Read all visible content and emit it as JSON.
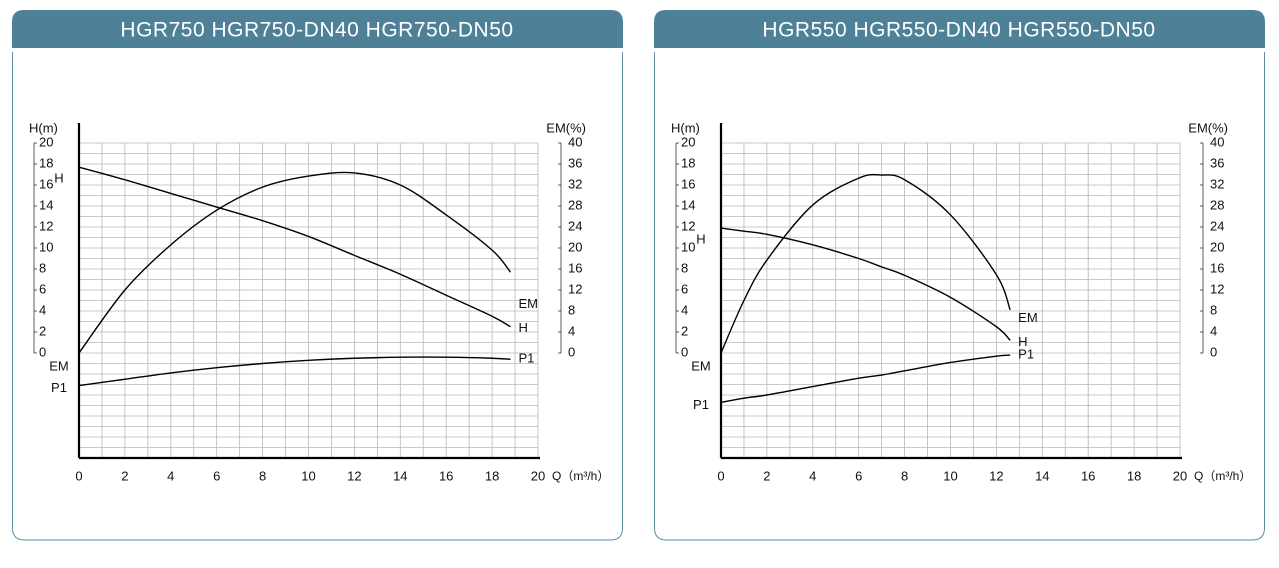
{
  "chart_data": [
    {
      "type": "line",
      "title": "HGR750 HGR750-DN40 HGR750-DN50",
      "x_label": "Q（m³/h）",
      "y_label": "H(m)",
      "y2_label": "EM(%)",
      "x": [
        0,
        2,
        4,
        6,
        8,
        10,
        12,
        14,
        16,
        18,
        18.8
      ],
      "series": [
        {
          "name": "H",
          "color": "#000000",
          "values": [
            17.7,
            16.5,
            15.2,
            13.9,
            12.6,
            11.1,
            9.3,
            7.5,
            5.5,
            3.5,
            2.5
          ]
        },
        {
          "name": "EM",
          "color": "#000000",
          "axis": "y2",
          "values": [
            0,
            12,
            20.6,
            27.2,
            31.6,
            33.7,
            34.3,
            32,
            26.3,
            19.6,
            15.4
          ]
        },
        {
          "name": "P1",
          "color": "#000000",
          "values": [
            -3.1,
            -2.5,
            -1.9,
            -1.4,
            -1.0,
            -0.7,
            -0.5,
            -0.4,
            -0.4,
            -0.5,
            -0.6
          ]
        }
      ],
      "xlim": [
        0,
        20
      ],
      "xticks": [
        0,
        2,
        4,
        6,
        8,
        10,
        12,
        14,
        16,
        18,
        20
      ],
      "xminor": [
        1,
        3,
        5,
        7,
        9,
        11,
        13,
        15,
        17,
        19
      ],
      "ylim": [
        -10,
        20
      ],
      "yticks": [
        0,
        2,
        4,
        6,
        8,
        10,
        12,
        14,
        16,
        18,
        20
      ],
      "yminor": [
        -9,
        -8,
        -7,
        -6,
        -5,
        -4,
        -3,
        -2,
        -1,
        1,
        3,
        5,
        7,
        9,
        11,
        13,
        15,
        17,
        19
      ],
      "y2lim": [
        -20,
        40
      ],
      "y2ticks": [
        0,
        4,
        8,
        12,
        16,
        20,
        24,
        28,
        32,
        36,
        40
      ],
      "grid": true
    },
    {
      "type": "line",
      "title": "HGR550 HGR550-DN40 HGR550-DN50",
      "x_label": "Q（m³/h）",
      "y_label": "H(m)",
      "y2_label": "EM(%)",
      "x": [
        0,
        1,
        2,
        4,
        6,
        7,
        8,
        10,
        12,
        12.6
      ],
      "series": [
        {
          "name": "H",
          "color": "#000000",
          "values": [
            11.9,
            11.6,
            11.3,
            10.3,
            9.0,
            8.2,
            7.4,
            5.3,
            2.5,
            1.2
          ]
        },
        {
          "name": "EM",
          "color": "#000000",
          "axis": "y2",
          "values": [
            0,
            10,
            17.7,
            28.2,
            33.3,
            33.9,
            33,
            26.3,
            14.9,
            8.2
          ]
        },
        {
          "name": "P1",
          "color": "#000000",
          "values": [
            -4.7,
            -4.3,
            -4.0,
            -3.2,
            -2.4,
            -2.1,
            -1.7,
            -0.9,
            -0.3,
            -0.2
          ]
        }
      ],
      "xlim": [
        0,
        20
      ],
      "xticks": [
        0,
        2,
        4,
        6,
        8,
        10,
        12,
        14,
        16,
        18,
        20
      ],
      "xminor": [
        1,
        3,
        5,
        7,
        9,
        11,
        13,
        15,
        17,
        19
      ],
      "ylim": [
        -10,
        20
      ],
      "yticks": [
        0,
        2,
        4,
        6,
        8,
        10,
        12,
        14,
        16,
        18,
        20
      ],
      "yminor": [
        -9,
        -8,
        -7,
        -6,
        -5,
        -4,
        -3,
        -2,
        -1,
        1,
        3,
        5,
        7,
        9,
        11,
        13,
        15,
        17,
        19
      ],
      "y2lim": [
        -20,
        40
      ],
      "y2ticks": [
        0,
        4,
        8,
        12,
        16,
        20,
        24,
        28,
        32,
        36,
        40
      ],
      "grid": true
    }
  ]
}
